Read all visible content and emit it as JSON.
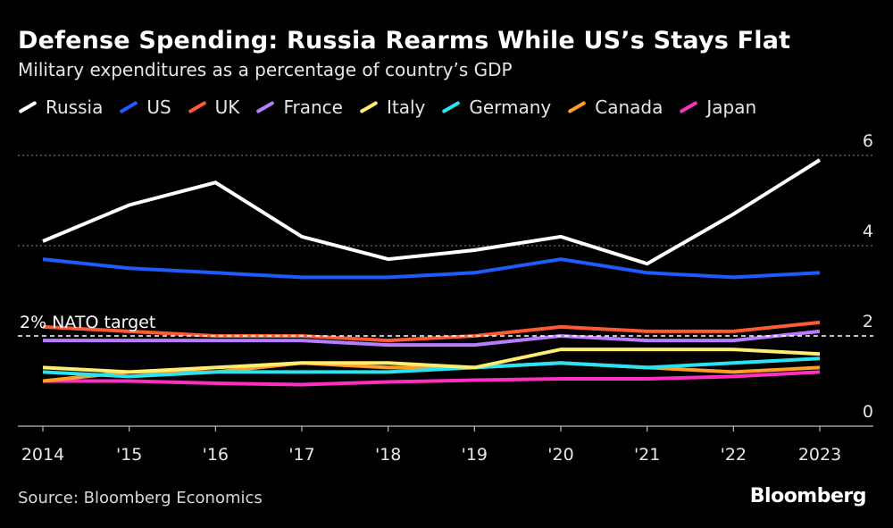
{
  "header": {
    "title": "Defense Spending: Russia Rearms While US’s Stays Flat",
    "subtitle": "Military expenditures as a percentage of country’s GDP"
  },
  "footer": {
    "source": "Source: Bloomberg Economics",
    "brand": "Bloomberg"
  },
  "chart_data": {
    "type": "line",
    "title": "Defense Spending: Russia Rearms While US’s Stays Flat",
    "subtitle": "Military expenditures as a percentage of country’s GDP",
    "x": [
      2014,
      2015,
      2016,
      2017,
      2018,
      2019,
      2020,
      2021,
      2022,
      2023
    ],
    "x_tick_labels": [
      "2014",
      "'15",
      "'16",
      "'17",
      "'18",
      "'19",
      "'20",
      "'21",
      "'22",
      "2023"
    ],
    "y_ticks": [
      0,
      2,
      4,
      6
    ],
    "ylim": [
      0,
      6
    ],
    "grid": "horizontal dotted at 4 and 6",
    "legend_placement": "top-left",
    "annotation": {
      "label": "2% NATO target",
      "value": 2
    },
    "series": [
      {
        "name": "Russia",
        "color": "#ffffff",
        "values": [
          4.1,
          4.9,
          5.4,
          4.2,
          3.7,
          3.9,
          4.2,
          3.6,
          4.7,
          5.9
        ]
      },
      {
        "name": "US",
        "color": "#1f5cff",
        "values": [
          3.7,
          3.5,
          3.4,
          3.3,
          3.3,
          3.4,
          3.7,
          3.4,
          3.3,
          3.4
        ]
      },
      {
        "name": "UK",
        "color": "#ff5a36",
        "values": [
          2.2,
          2.1,
          2.0,
          2.0,
          1.9,
          2.0,
          2.2,
          2.1,
          2.1,
          2.3
        ]
      },
      {
        "name": "France",
        "color": "#b77cff",
        "values": [
          1.9,
          1.9,
          1.9,
          1.9,
          1.8,
          1.8,
          2.0,
          1.9,
          1.9,
          2.1
        ]
      },
      {
        "name": "Italy",
        "color": "#ffee6e",
        "values": [
          1.3,
          1.2,
          1.3,
          1.4,
          1.4,
          1.3,
          1.7,
          1.7,
          1.7,
          1.6
        ]
      },
      {
        "name": "Germany",
        "color": "#29e3f5",
        "values": [
          1.2,
          1.1,
          1.2,
          1.2,
          1.2,
          1.3,
          1.4,
          1.3,
          1.4,
          1.5
        ]
      },
      {
        "name": "Canada",
        "color": "#ff9d28",
        "values": [
          1.0,
          1.2,
          1.2,
          1.4,
          1.3,
          1.3,
          1.4,
          1.3,
          1.2,
          1.3
        ]
      },
      {
        "name": "Japan",
        "color": "#ff2fc3",
        "values": [
          1.0,
          1.0,
          0.95,
          0.92,
          0.98,
          1.02,
          1.05,
          1.05,
          1.1,
          1.2
        ]
      }
    ]
  }
}
